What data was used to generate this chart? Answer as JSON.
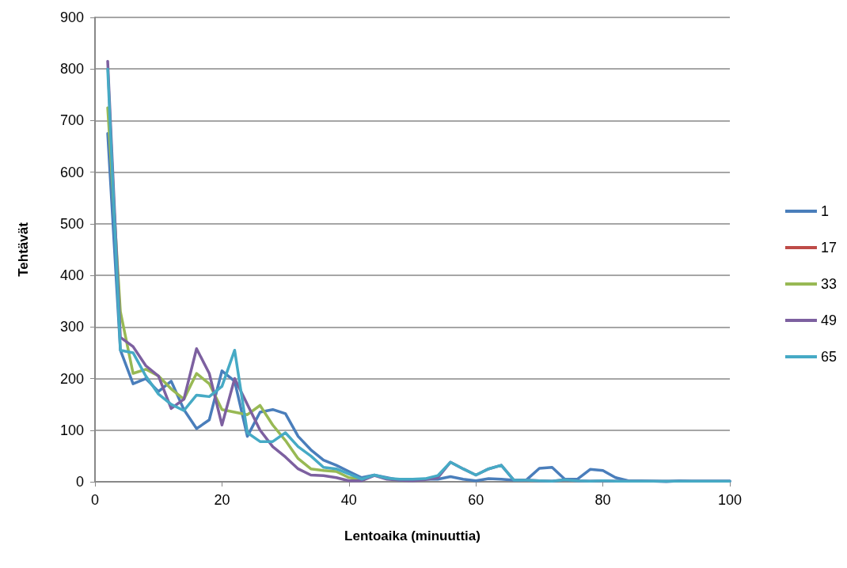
{
  "chart_data": {
    "type": "line",
    "xlabel": "Lentoaika (minuuttia)",
    "ylabel": "Tehtävät",
    "x": [
      2,
      4,
      6,
      8,
      10,
      12,
      14,
      16,
      18,
      20,
      22,
      24,
      26,
      28,
      30,
      32,
      34,
      36,
      38,
      40,
      42,
      44,
      46,
      48,
      50,
      52,
      54,
      56,
      58,
      60,
      62,
      64,
      66,
      68,
      70,
      72,
      74,
      76,
      78,
      80,
      82,
      84,
      86,
      88,
      90,
      92,
      94,
      96,
      98,
      100
    ],
    "xlim": [
      0,
      100
    ],
    "xticks": [
      0,
      20,
      40,
      60,
      80,
      100
    ],
    "ylim": [
      0,
      900
    ],
    "yticks": [
      0,
      100,
      200,
      300,
      400,
      500,
      600,
      700,
      800,
      900
    ],
    "grid": "y",
    "legend": "right",
    "marker": "none",
    "line_style": "solid",
    "series": [
      {
        "name": "1",
        "color": "#4a7ebb",
        "values": [
          675,
          255,
          190,
          200,
          175,
          195,
          140,
          103,
          120,
          215,
          195,
          88,
          135,
          140,
          132,
          88,
          62,
          42,
          32,
          20,
          8,
          13,
          8,
          3,
          5,
          5,
          5,
          10,
          5,
          2,
          6,
          5,
          3,
          4,
          26,
          28,
          5,
          5,
          24,
          22,
          8,
          2,
          2,
          1,
          0,
          2,
          1,
          1,
          1,
          1
        ]
      },
      {
        "name": "17",
        "color": "#be4b48",
        "values": [
          null,
          null,
          null,
          null,
          null,
          null,
          null,
          null,
          null,
          null,
          null,
          null,
          null,
          null,
          null,
          null,
          null,
          null,
          null,
          null,
          null,
          null,
          null,
          null,
          null,
          null,
          null,
          null,
          null,
          null,
          null,
          null,
          null,
          null,
          null,
          null,
          null,
          null,
          null,
          null,
          null,
          null,
          null,
          null,
          null,
          null,
          null,
          null,
          null,
          null
        ]
      },
      {
        "name": "33",
        "color": "#98b954",
        "values": [
          725,
          330,
          210,
          218,
          205,
          180,
          160,
          210,
          190,
          140,
          135,
          130,
          148,
          110,
          80,
          45,
          25,
          22,
          20,
          8,
          5,
          null,
          null,
          null,
          null,
          null,
          null,
          null,
          null,
          null,
          null,
          null,
          null,
          null,
          null,
          null,
          null,
          null,
          null,
          null,
          null,
          null,
          null,
          null,
          null,
          null,
          null,
          null,
          null,
          null
        ]
      },
      {
        "name": "49",
        "color": "#7d60a0",
        "values": [
          815,
          280,
          262,
          225,
          205,
          142,
          160,
          258,
          210,
          110,
          200,
          150,
          100,
          68,
          48,
          25,
          13,
          12,
          8,
          2,
          2,
          12,
          5,
          3,
          2,
          4,
          8,
          38,
          25,
          13,
          25,
          32,
          3,
          3,
          2,
          1,
          4,
          2,
          1,
          2,
          1,
          1,
          1,
          1,
          1,
          1,
          1,
          1,
          1,
          1
        ]
      },
      {
        "name": "65",
        "color": "#46aac5",
        "values": [
          800,
          255,
          250,
          205,
          170,
          150,
          138,
          168,
          165,
          185,
          255,
          95,
          78,
          78,
          95,
          68,
          50,
          28,
          25,
          15,
          5,
          13,
          7,
          5,
          5,
          6,
          12,
          38,
          25,
          13,
          25,
          32,
          3,
          3,
          2,
          1,
          4,
          2,
          1,
          2,
          1,
          1,
          1,
          1,
          1,
          1,
          1,
          1,
          1,
          1
        ]
      }
    ]
  }
}
